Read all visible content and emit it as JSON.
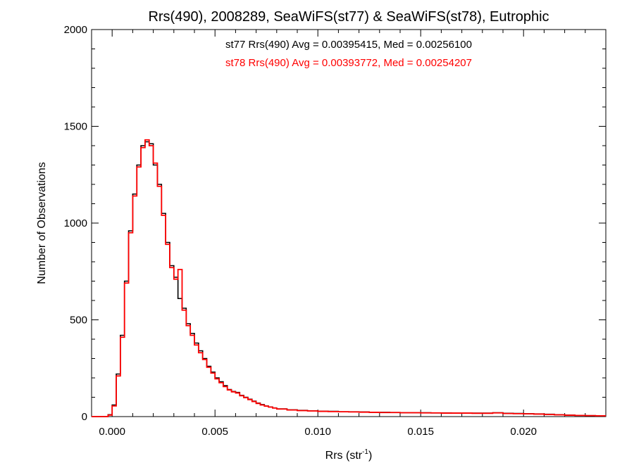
{
  "chart_data": {
    "type": "histogram",
    "title": "Rrs(490), 2008289, SeaWiFS(st77) & SeaWiFS(st78), Eutrophic",
    "xlabel": "Rrs (str",
    "xlabel_superscript": "-1",
    "xlabel_suffix": ")",
    "ylabel": "Number of Observations",
    "xlim": [
      -0.001,
      0.024
    ],
    "ylim": [
      0,
      2000
    ],
    "xticks": [
      0.0,
      0.005,
      0.01,
      0.015,
      0.02
    ],
    "xtick_labels": [
      "0.000",
      "0.005",
      "0.010",
      "0.015",
      "0.020"
    ],
    "yticks": [
      0,
      500,
      1000,
      1500,
      2000
    ],
    "ytick_labels": [
      "0",
      "500",
      "1000",
      "1500",
      "2000"
    ],
    "grid": false,
    "annotations": [
      {
        "text": "st77 Rrs(490) Avg = 0.00395415, Med = 0.00256100",
        "color": "#000000"
      },
      {
        "text": "st78 Rrs(490) Avg = 0.00393772, Med = 0.00254207",
        "color": "#ff0000"
      }
    ],
    "series": [
      {
        "name": "st77",
        "color": "#000000",
        "x": [
          -0.0002,
          0.0,
          0.0002,
          0.0004,
          0.0006,
          0.0008,
          0.001,
          0.0012,
          0.0014,
          0.0016,
          0.0018,
          0.002,
          0.0022,
          0.0024,
          0.0026,
          0.0028,
          0.003,
          0.0032,
          0.0034,
          0.0036,
          0.0038,
          0.004,
          0.0042,
          0.0044,
          0.0046,
          0.0048,
          0.005,
          0.0052,
          0.0054,
          0.0056,
          0.0058,
          0.006,
          0.0062,
          0.0064,
          0.0066,
          0.0068,
          0.007,
          0.0072,
          0.0074,
          0.0076,
          0.0078,
          0.008,
          0.0085,
          0.009,
          0.0095,
          0.01,
          0.0105,
          0.011,
          0.0115,
          0.012,
          0.0125,
          0.013,
          0.0135,
          0.014,
          0.0145,
          0.015,
          0.0155,
          0.016,
          0.0165,
          0.017,
          0.0175,
          0.018,
          0.0185,
          0.019,
          0.0195,
          0.02,
          0.0205,
          0.021,
          0.0215,
          0.022,
          0.0225,
          0.023,
          0.0235
        ],
        "y": [
          10,
          60,
          220,
          420,
          700,
          960,
          1150,
          1300,
          1400,
          1420,
          1410,
          1300,
          1200,
          1050,
          900,
          780,
          720,
          610,
          560,
          480,
          430,
          380,
          340,
          300,
          260,
          230,
          200,
          180,
          160,
          140,
          130,
          125,
          110,
          100,
          90,
          80,
          70,
          62,
          55,
          50,
          45,
          40,
          35,
          32,
          30,
          28,
          27,
          25,
          25,
          24,
          22,
          22,
          21,
          20,
          20,
          20,
          19,
          19,
          18,
          18,
          18,
          18,
          20,
          17,
          16,
          15,
          14,
          12,
          10,
          8,
          6,
          5,
          4
        ]
      },
      {
        "name": "st78",
        "color": "#ff0000",
        "x": [
          -0.0002,
          0.0,
          0.0002,
          0.0004,
          0.0006,
          0.0008,
          0.001,
          0.0012,
          0.0014,
          0.0016,
          0.0018,
          0.002,
          0.0022,
          0.0024,
          0.0026,
          0.0028,
          0.003,
          0.0032,
          0.0034,
          0.0036,
          0.0038,
          0.004,
          0.0042,
          0.0044,
          0.0046,
          0.0048,
          0.005,
          0.0052,
          0.0054,
          0.0056,
          0.0058,
          0.006,
          0.0062,
          0.0064,
          0.0066,
          0.0068,
          0.007,
          0.0072,
          0.0074,
          0.0076,
          0.0078,
          0.008,
          0.0085,
          0.009,
          0.0095,
          0.01,
          0.0105,
          0.011,
          0.0115,
          0.012,
          0.0125,
          0.013,
          0.0135,
          0.014,
          0.0145,
          0.015,
          0.0155,
          0.016,
          0.0165,
          0.017,
          0.0175,
          0.018,
          0.0185,
          0.019,
          0.0195,
          0.02,
          0.0205,
          0.021,
          0.0215,
          0.022,
          0.0225,
          0.023,
          0.0235
        ],
        "y": [
          8,
          55,
          210,
          410,
          690,
          950,
          1140,
          1290,
          1390,
          1430,
          1400,
          1310,
          1190,
          1040,
          890,
          770,
          710,
          760,
          550,
          470,
          420,
          370,
          330,
          295,
          255,
          225,
          195,
          175,
          155,
          138,
          128,
          122,
          108,
          98,
          88,
          78,
          68,
          60,
          54,
          49,
          44,
          39,
          34,
          31,
          29,
          27,
          26,
          25,
          24,
          23,
          22,
          21,
          21,
          20,
          20,
          19,
          19,
          18,
          18,
          18,
          17,
          17,
          19,
          16,
          15,
          14,
          13,
          11,
          9,
          7,
          6,
          5,
          4
        ]
      }
    ]
  }
}
